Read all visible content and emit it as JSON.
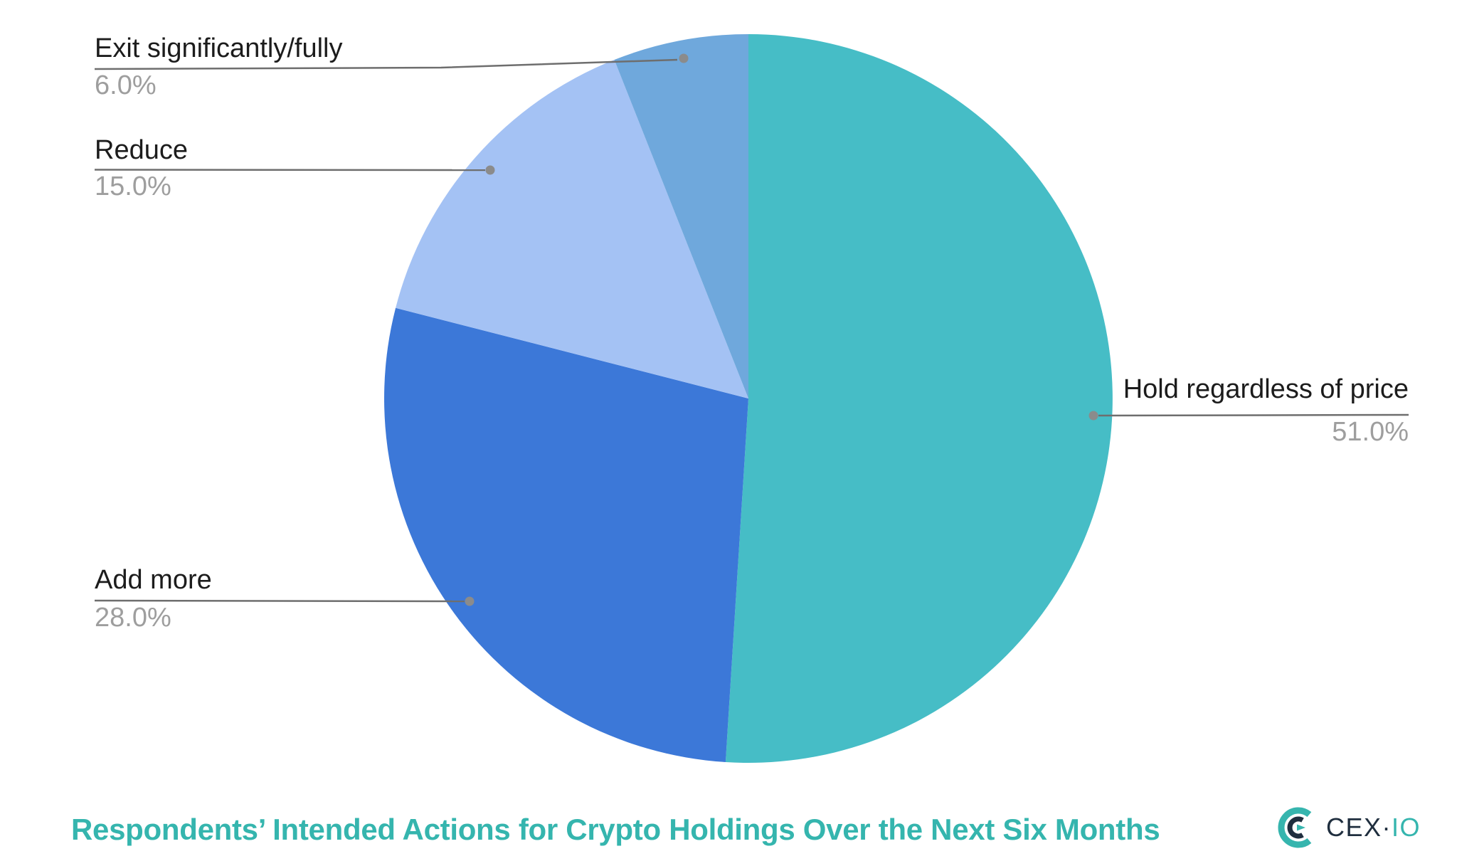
{
  "chart_data": {
    "type": "pie",
    "title": "Respondents’ Intended Actions for Crypto Holdings Over the Next Six Months",
    "direction": "clockwise",
    "start_angle_deg": 0,
    "legend_position": "outside-callouts",
    "slices": [
      {
        "label": "Hold regardless of price",
        "value": 51.0,
        "display": "51.0%",
        "color": "#46bdc6"
      },
      {
        "label": "Add more",
        "value": 28.0,
        "display": "28.0%",
        "color": "#3c78d8"
      },
      {
        "label": "Reduce",
        "value": 15.0,
        "display": "15.0%",
        "color": "#a4c2f4"
      },
      {
        "label": "Exit significantly/fully",
        "value": 6.0,
        "display": "6.0%",
        "color": "#6fa8dc"
      }
    ]
  },
  "branding": {
    "logo_cex": "CEX",
    "logo_separator": "·",
    "logo_io": "IO"
  },
  "theme": {
    "title_color": "#35b5ae",
    "label_color": "#1c1c1c",
    "value_color": "#9e9e9e",
    "leader_color": "#6e6e6e",
    "leader_dot_color": "#8b8b8b",
    "logo_dark": "#1f2e3e",
    "background": "#ffffff"
  }
}
